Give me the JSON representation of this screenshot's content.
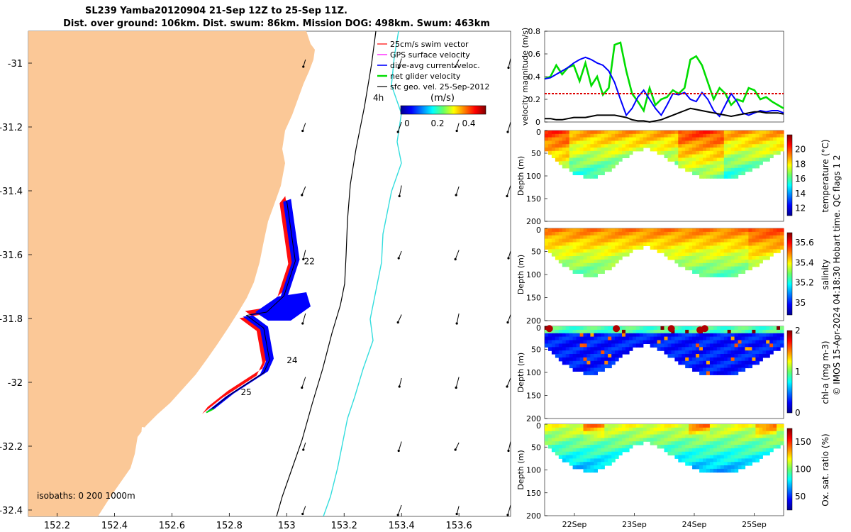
{
  "title_line1": "SL239 Yamba20120904 21-Sep 12Z to 25-Sep 11Z.",
  "title_line2": "Dist. over ground: 106km. Dist. swum: 86km. Mission DOG: 498km. Swum: 463km",
  "colors": {
    "land": "#fbc897",
    "swim": "#ff0000",
    "gps": "#ff00ff",
    "current": "#0000ff",
    "glider": "#00dd00",
    "geo": "#000000",
    "isobath200": "#000000",
    "isobath1000": "#33dddd"
  },
  "chart_data": [
    {
      "type": "map",
      "x_ticks": [
        "152.2",
        "152.4",
        "152.6",
        "152.8",
        "153",
        "153.2",
        "153.4",
        "153.6"
      ],
      "y_ticks": [
        "-31",
        "-31.2",
        "-31.4",
        "-31.6",
        "-31.8",
        "-32",
        "-32.2",
        "-32.4"
      ],
      "xlim": [
        152.1,
        153.78
      ],
      "ylim": [
        -32.42,
        -30.9
      ],
      "legend": [
        {
          "label": "25cm/s swim vector",
          "color": "#ff0000"
        },
        {
          "label": "GPS surface velocity",
          "color": "#ff00ff"
        },
        {
          "label": "dive-avg current veloc.",
          "color": "#0000ff"
        },
        {
          "label": "net glider velocity",
          "color": "#00dd00"
        },
        {
          "label": "sfc geo. vel. 25-Sep-2012",
          "color": "#000000"
        }
      ],
      "colorbar": {
        "label": "(m/s)",
        "ticks": [
          "0",
          "0.2",
          "0.4"
        ],
        "range": [
          0,
          0.5
        ]
      },
      "time_label": "4h",
      "isobath_label": "isobaths: 0   200  1000m",
      "day_labels": [
        {
          "text": "22",
          "lon": 153.06,
          "lat": -31.63
        },
        {
          "text": "24",
          "lon": 153.0,
          "lat": -31.94
        },
        {
          "text": "25",
          "lon": 152.84,
          "lat": -32.04
        }
      ],
      "track": [
        [
          153.0,
          -31.43
        ],
        [
          153.03,
          -31.62
        ],
        [
          152.99,
          -31.73
        ],
        [
          152.93,
          -31.78
        ],
        [
          152.86,
          -31.79
        ],
        [
          152.92,
          -31.83
        ],
        [
          152.94,
          -31.93
        ],
        [
          152.92,
          -31.97
        ],
        [
          152.8,
          -32.04
        ],
        [
          152.73,
          -32.09
        ]
      ],
      "vector_lons": [
        153.1,
        153.4,
        153.6,
        153.78
      ],
      "vector_lats": [
        -31.0,
        -31.2,
        -31.4,
        -31.6,
        -31.8,
        -32.0,
        -32.2,
        -32.4
      ]
    },
    {
      "type": "line",
      "ylabel": "velocity magnitude (m/s)",
      "ylim": [
        0,
        0.8
      ],
      "yticks": [
        "0",
        "0.2",
        "0.4",
        "0.6",
        "0.8"
      ],
      "x": [
        0,
        0.1,
        0.2,
        0.3,
        0.4,
        0.5,
        0.6,
        0.7,
        0.8,
        0.9,
        1.0,
        1.1,
        1.2,
        1.3,
        1.4,
        1.5,
        1.6,
        1.7,
        1.8,
        1.9,
        2.0,
        2.1,
        2.2,
        2.3,
        2.4,
        2.5,
        2.6,
        2.7,
        2.8,
        2.9,
        3.0,
        3.1,
        3.2,
        3.3,
        3.4,
        3.5,
        3.6,
        3.7,
        3.8,
        3.9,
        4.0,
        4.1
      ],
      "series": [
        {
          "color": "#00dd00",
          "values": [
            0.38,
            0.4,
            0.5,
            0.42,
            0.48,
            0.5,
            0.36,
            0.52,
            0.32,
            0.4,
            0.24,
            0.3,
            0.68,
            0.7,
            0.45,
            0.25,
            0.18,
            0.1,
            0.3,
            0.15,
            0.2,
            0.22,
            0.28,
            0.25,
            0.3,
            0.55,
            0.58,
            0.5,
            0.35,
            0.2,
            0.3,
            0.25,
            0.15,
            0.2,
            0.18,
            0.3,
            0.28,
            0.2,
            0.22,
            0.18,
            0.15,
            0.12
          ]
        },
        {
          "color": "#0000ff",
          "values": [
            0.38,
            0.39,
            0.42,
            0.45,
            0.48,
            0.52,
            0.55,
            0.57,
            0.55,
            0.52,
            0.5,
            0.45,
            0.35,
            0.2,
            0.06,
            0.12,
            0.22,
            0.28,
            0.2,
            0.12,
            0.06,
            0.15,
            0.25,
            0.24,
            0.26,
            0.2,
            0.18,
            0.26,
            0.2,
            0.1,
            0.05,
            0.15,
            0.25,
            0.18,
            0.08,
            0.06,
            0.08,
            0.1,
            0.09,
            0.1,
            0.1,
            0.08
          ]
        },
        {
          "color": "#dd0000",
          "values": [
            0.25,
            0.25,
            0.25,
            0.25,
            0.25,
            0.25,
            0.25,
            0.25,
            0.25,
            0.25,
            0.25,
            0.25,
            0.25,
            0.25,
            0.25,
            0.25,
            0.25,
            0.25,
            0.25,
            0.25,
            0.25,
            0.25,
            0.25,
            0.25,
            0.25,
            0.25,
            0.25,
            0.25,
            0.25,
            0.25,
            0.25,
            0.25,
            0.25,
            0.25,
            0.25,
            0.25,
            0.25,
            0.25,
            0.25,
            0.25,
            0.25,
            0.25
          ]
        },
        {
          "color": "#000000",
          "values": [
            0.03,
            0.03,
            0.02,
            0.02,
            0.03,
            0.04,
            0.04,
            0.04,
            0.05,
            0.06,
            0.06,
            0.06,
            0.06,
            0.05,
            0.04,
            0.02,
            0.01,
            0.01,
            0.0,
            0.01,
            0.02,
            0.04,
            0.06,
            0.08,
            0.1,
            0.12,
            0.11,
            0.1,
            0.09,
            0.08,
            0.07,
            0.06,
            0.05,
            0.06,
            0.07,
            0.08,
            0.09,
            0.09,
            0.08,
            0.08,
            0.08,
            0.07
          ]
        }
      ]
    },
    {
      "type": "heatmap",
      "variable": "temperature",
      "clabel": "temperature (°C)",
      "cticks": [
        "12",
        "14",
        "16",
        "18",
        "20"
      ],
      "crange": [
        11,
        22
      ],
      "ylabel": "Depth (m)",
      "yticks": [
        "0",
        "50",
        "100",
        "150",
        "200"
      ],
      "ylim": [
        200,
        0
      ]
    },
    {
      "type": "heatmap",
      "variable": "salinity",
      "clabel": "salinity",
      "cticks": [
        "35",
        "35.2",
        "35.4",
        "35.6"
      ],
      "crange": [
        34.88,
        35.7
      ],
      "ylabel": "Depth (m)",
      "yticks": [
        "0",
        "50",
        "100",
        "150",
        "200"
      ],
      "ylim": [
        200,
        0
      ]
    },
    {
      "type": "heatmap",
      "variable": "chl",
      "clabel": "chl-a (mg m-3)",
      "cticks": [
        "0",
        "1",
        "2"
      ],
      "crange": [
        0,
        2
      ],
      "ylabel": "Depth (m)",
      "yticks": [
        "0",
        "50",
        "100",
        "150",
        "200"
      ],
      "ylim": [
        200,
        0
      ]
    },
    {
      "type": "heatmap",
      "variable": "oxsat",
      "clabel": "Ox. sat. ratio (%)",
      "cticks": [
        "50",
        "100",
        "150"
      ],
      "crange": [
        25,
        175
      ],
      "ylabel": "Depth (m)",
      "yticks": [
        "0",
        "50",
        "100",
        "150",
        "200"
      ],
      "ylim": [
        200,
        0
      ],
      "xticks": [
        "22Sep",
        "23Sep",
        "24Sep",
        "25Sep"
      ]
    }
  ],
  "copyright": "© IMOS 15-Apr-2024 04:18:30 Hobart time. QC flags 1  2"
}
